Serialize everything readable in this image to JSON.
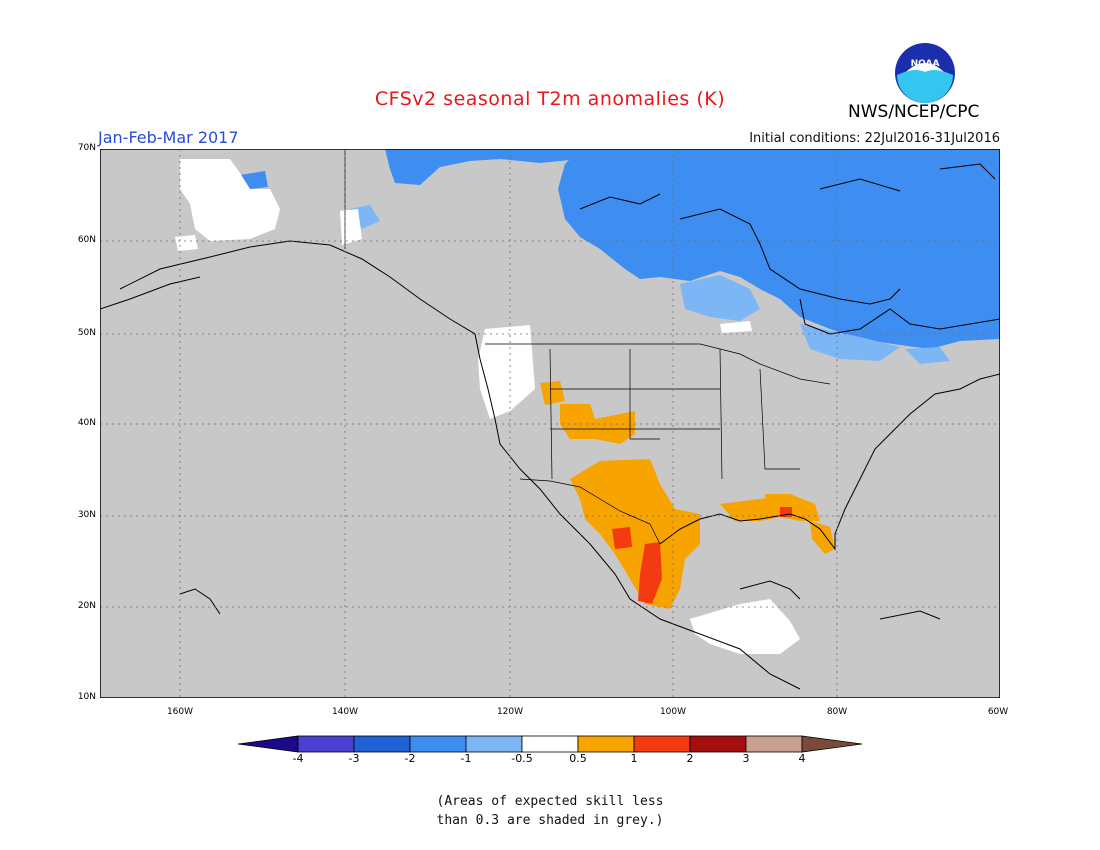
{
  "title": "CFSv2 seasonal T2m anomalies (K)",
  "season": "Jan-Feb-Mar 2017",
  "initial_conditions": "Initial conditions: 22Jul2016-31Jul2016",
  "agency": "NWS/NCEP/CPC",
  "logo_text": "NOAA",
  "lat_labels": [
    "70N",
    "60N",
    "50N",
    "40N",
    "30N",
    "20N",
    "10N"
  ],
  "lon_labels": [
    "160W",
    "140W",
    "120W",
    "100W",
    "80W",
    "60W"
  ],
  "colorbar": {
    "labels": [
      "-4",
      "-3",
      "-2",
      "-1",
      "-0.5",
      "0.5",
      "1",
      "2",
      "3",
      "4"
    ],
    "colors": [
      "#1b0a8a",
      "#4a3fd0",
      "#1f62d6",
      "#3d8ef0",
      "#7db6f4",
      "#ffffff",
      "#f7a300",
      "#f43a10",
      "#a50f0f",
      "#c8a090",
      "#7a4a3a"
    ]
  },
  "note_lines": [
    "(Areas of expected skill less",
    "than 0.3 are shaded in grey.)"
  ],
  "colors": {
    "grey": "#c8c8c8",
    "title": "#e8161a",
    "season": "#2a4bd7"
  }
}
